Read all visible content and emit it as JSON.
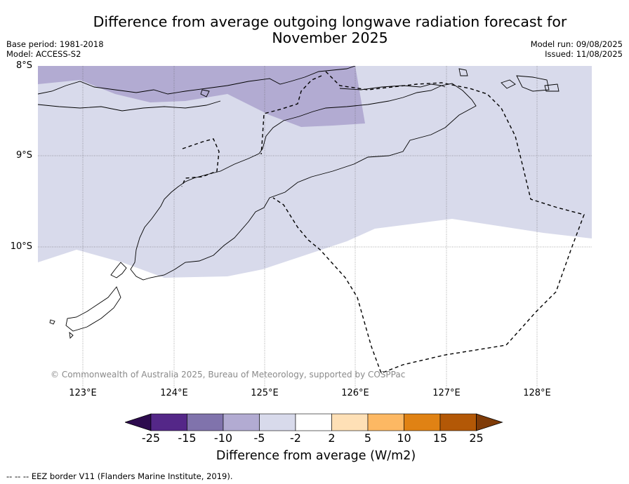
{
  "title": "Difference from average outgoing longwave radiation forecast for November 2025",
  "base_period": "Base period: 1981-2018",
  "model": "Model: ACCESS-S2",
  "model_run": "Model run: 09/08/2025",
  "issued": "Issued: 11/08/2025",
  "copyright": "© Commonwealth of Australia 2025, Bureau of Meteorology, supported by COSPPac",
  "latitude_labels": [
    "8°S",
    "9°S",
    "10°S"
  ],
  "longitude_labels": [
    "123°E",
    "124°E",
    "125°E",
    "126°E",
    "127°E",
    "128°E"
  ],
  "colorbar": {
    "title": "Difference from average (W/m2)",
    "tick_labels": [
      "-25",
      "-15",
      "-10",
      "-5",
      "-2",
      "2",
      "5",
      "10",
      "15",
      "25"
    ],
    "colors": [
      "#2d0b4e",
      "#542788",
      "#8073ac",
      "#b2abd2",
      "#d8daeb",
      "#ffffff",
      "#fee0b6",
      "#fdb863",
      "#e08214",
      "#b35806",
      "#7f3b08"
    ]
  },
  "legend_note": "--  --  -- EEZ border V11 (Flanders Marine Institute, 2019).",
  "map_colors": {
    "light_band": "#d8daeb",
    "medium_band": "#b2abd2",
    "coast": "#000000",
    "grid": "#555555"
  }
}
